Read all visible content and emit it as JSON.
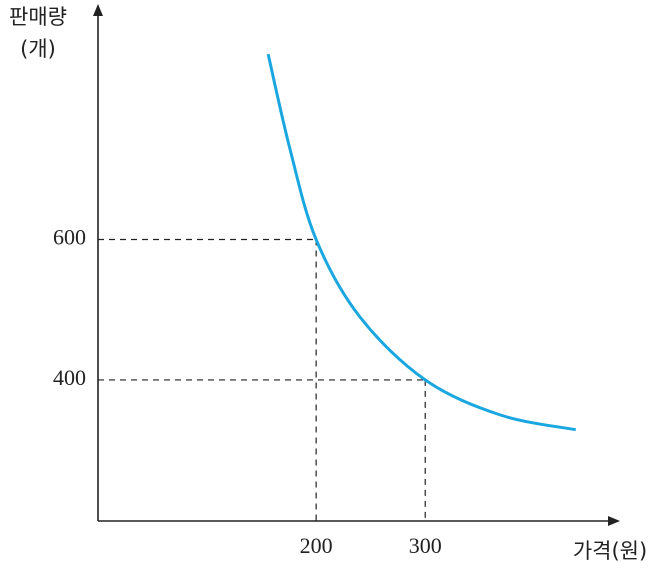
{
  "chart_data": {
    "type": "line",
    "xlabel": "가격(원)",
    "ylabel": [
      "판매량",
      "(개)"
    ],
    "x": [
      156,
      176,
      200,
      240,
      300,
      369,
      438
    ],
    "series": [
      {
        "color": "#1aa7e0",
        "values": [
          864,
          729,
          600,
          490,
          400,
          350,
          329
        ]
      }
    ],
    "xlim": [
      0,
      474
    ],
    "ylim": [
      199,
      927
    ],
    "xticks": [
      200,
      300
    ],
    "yticks": [
      400,
      600
    ],
    "guides": true
  }
}
